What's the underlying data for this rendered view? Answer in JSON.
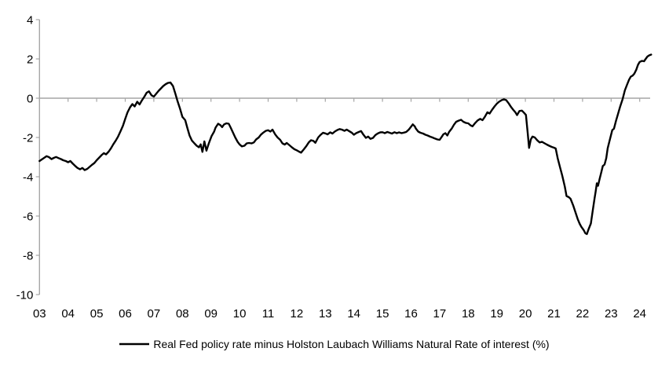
{
  "colors": {
    "background": "#ffffff",
    "axis": "#a6a6a6",
    "line": "#000000",
    "text": "#000000"
  },
  "legend": {
    "label": "Real Fed policy rate minus Holston Laubach Williams Natural Rate of interest (%)"
  },
  "chart_data": {
    "type": "line",
    "title": "",
    "xlabel": "",
    "ylabel": "",
    "grid": "zero-line-only",
    "legend_position": "bottom-center",
    "legend": [
      "Real Fed policy rate minus Holston Laubach Williams Natural Rate of interest (%)"
    ],
    "ylim": [
      -10,
      4
    ],
    "xlim": [
      2003,
      2024.45
    ],
    "y_ticks": [
      4,
      2,
      0,
      -2,
      -4,
      -6,
      -8,
      -10
    ],
    "x_ticks": [
      "03",
      "04",
      "05",
      "06",
      "07",
      "08",
      "09",
      "10",
      "11",
      "12",
      "13",
      "14",
      "15",
      "16",
      "17",
      "18",
      "19",
      "20",
      "21",
      "22",
      "23",
      "24"
    ],
    "series": [
      {
        "points": [
          [
            2003.0,
            -3.2
          ],
          [
            2003.08,
            -3.12
          ],
          [
            2003.17,
            -3.03
          ],
          [
            2003.25,
            -2.95
          ],
          [
            2003.33,
            -3.0
          ],
          [
            2003.42,
            -3.1
          ],
          [
            2003.5,
            -3.04
          ],
          [
            2003.58,
            -2.99
          ],
          [
            2003.67,
            -3.05
          ],
          [
            2003.75,
            -3.1
          ],
          [
            2003.83,
            -3.16
          ],
          [
            2003.92,
            -3.2
          ],
          [
            2004.0,
            -3.26
          ],
          [
            2004.08,
            -3.2
          ],
          [
            2004.17,
            -3.34
          ],
          [
            2004.25,
            -3.45
          ],
          [
            2004.33,
            -3.55
          ],
          [
            2004.42,
            -3.62
          ],
          [
            2004.5,
            -3.55
          ],
          [
            2004.58,
            -3.66
          ],
          [
            2004.67,
            -3.6
          ],
          [
            2004.75,
            -3.5
          ],
          [
            2004.83,
            -3.4
          ],
          [
            2004.92,
            -3.3
          ],
          [
            2005.0,
            -3.16
          ],
          [
            2005.08,
            -3.04
          ],
          [
            2005.17,
            -2.9
          ],
          [
            2005.25,
            -2.8
          ],
          [
            2005.33,
            -2.86
          ],
          [
            2005.42,
            -2.72
          ],
          [
            2005.5,
            -2.55
          ],
          [
            2005.58,
            -2.35
          ],
          [
            2005.67,
            -2.15
          ],
          [
            2005.75,
            -1.95
          ],
          [
            2005.83,
            -1.7
          ],
          [
            2005.92,
            -1.4
          ],
          [
            2006.0,
            -1.05
          ],
          [
            2006.08,
            -0.72
          ],
          [
            2006.17,
            -0.46
          ],
          [
            2006.25,
            -0.3
          ],
          [
            2006.33,
            -0.42
          ],
          [
            2006.42,
            -0.18
          ],
          [
            2006.5,
            -0.32
          ],
          [
            2006.58,
            -0.12
          ],
          [
            2006.67,
            0.08
          ],
          [
            2006.75,
            0.28
          ],
          [
            2006.83,
            0.35
          ],
          [
            2006.92,
            0.15
          ],
          [
            2007.0,
            0.08
          ],
          [
            2007.08,
            0.22
          ],
          [
            2007.17,
            0.38
          ],
          [
            2007.25,
            0.5
          ],
          [
            2007.33,
            0.62
          ],
          [
            2007.42,
            0.72
          ],
          [
            2007.5,
            0.78
          ],
          [
            2007.58,
            0.8
          ],
          [
            2007.67,
            0.62
          ],
          [
            2007.75,
            0.25
          ],
          [
            2007.83,
            -0.15
          ],
          [
            2007.92,
            -0.55
          ],
          [
            2008.0,
            -0.95
          ],
          [
            2008.04,
            -1.02
          ],
          [
            2008.1,
            -1.12
          ],
          [
            2008.17,
            -1.5
          ],
          [
            2008.25,
            -1.9
          ],
          [
            2008.33,
            -2.15
          ],
          [
            2008.42,
            -2.3
          ],
          [
            2008.5,
            -2.42
          ],
          [
            2008.58,
            -2.5
          ],
          [
            2008.64,
            -2.35
          ],
          [
            2008.7,
            -2.73
          ],
          [
            2008.77,
            -2.2
          ],
          [
            2008.84,
            -2.67
          ],
          [
            2008.93,
            -2.27
          ],
          [
            2009.02,
            -1.93
          ],
          [
            2009.11,
            -1.7
          ],
          [
            2009.16,
            -1.5
          ],
          [
            2009.25,
            -1.3
          ],
          [
            2009.33,
            -1.37
          ],
          [
            2009.39,
            -1.47
          ],
          [
            2009.46,
            -1.33
          ],
          [
            2009.54,
            -1.28
          ],
          [
            2009.62,
            -1.3
          ],
          [
            2009.69,
            -1.5
          ],
          [
            2009.77,
            -1.75
          ],
          [
            2009.85,
            -2.0
          ],
          [
            2009.93,
            -2.22
          ],
          [
            2010.0,
            -2.35
          ],
          [
            2010.08,
            -2.45
          ],
          [
            2010.17,
            -2.42
          ],
          [
            2010.25,
            -2.3
          ],
          [
            2010.33,
            -2.28
          ],
          [
            2010.42,
            -2.3
          ],
          [
            2010.5,
            -2.25
          ],
          [
            2010.58,
            -2.1
          ],
          [
            2010.67,
            -2.0
          ],
          [
            2010.75,
            -1.85
          ],
          [
            2010.83,
            -1.75
          ],
          [
            2010.92,
            -1.66
          ],
          [
            2011.0,
            -1.63
          ],
          [
            2011.08,
            -1.7
          ],
          [
            2011.15,
            -1.6
          ],
          [
            2011.25,
            -1.85
          ],
          [
            2011.33,
            -2.0
          ],
          [
            2011.42,
            -2.12
          ],
          [
            2011.5,
            -2.3
          ],
          [
            2011.58,
            -2.36
          ],
          [
            2011.65,
            -2.28
          ],
          [
            2011.75,
            -2.4
          ],
          [
            2011.83,
            -2.5
          ],
          [
            2011.92,
            -2.6
          ],
          [
            2012.0,
            -2.65
          ],
          [
            2012.08,
            -2.72
          ],
          [
            2012.15,
            -2.77
          ],
          [
            2012.25,
            -2.6
          ],
          [
            2012.33,
            -2.45
          ],
          [
            2012.42,
            -2.25
          ],
          [
            2012.5,
            -2.14
          ],
          [
            2012.58,
            -2.17
          ],
          [
            2012.65,
            -2.27
          ],
          [
            2012.75,
            -2.0
          ],
          [
            2012.83,
            -1.87
          ],
          [
            2012.92,
            -1.76
          ],
          [
            2013.0,
            -1.79
          ],
          [
            2013.08,
            -1.84
          ],
          [
            2013.17,
            -1.74
          ],
          [
            2013.25,
            -1.8
          ],
          [
            2013.33,
            -1.7
          ],
          [
            2013.42,
            -1.62
          ],
          [
            2013.5,
            -1.57
          ],
          [
            2013.58,
            -1.6
          ],
          [
            2013.67,
            -1.66
          ],
          [
            2013.75,
            -1.6
          ],
          [
            2013.83,
            -1.67
          ],
          [
            2013.92,
            -1.75
          ],
          [
            2014.0,
            -1.86
          ],
          [
            2014.08,
            -1.78
          ],
          [
            2014.17,
            -1.72
          ],
          [
            2014.25,
            -1.67
          ],
          [
            2014.33,
            -1.85
          ],
          [
            2014.42,
            -2.02
          ],
          [
            2014.5,
            -1.95
          ],
          [
            2014.58,
            -2.07
          ],
          [
            2014.67,
            -2.02
          ],
          [
            2014.75,
            -1.88
          ],
          [
            2014.83,
            -1.8
          ],
          [
            2014.92,
            -1.74
          ],
          [
            2015.0,
            -1.73
          ],
          [
            2015.08,
            -1.78
          ],
          [
            2015.17,
            -1.72
          ],
          [
            2015.25,
            -1.76
          ],
          [
            2015.33,
            -1.8
          ],
          [
            2015.42,
            -1.73
          ],
          [
            2015.5,
            -1.78
          ],
          [
            2015.58,
            -1.74
          ],
          [
            2015.67,
            -1.78
          ],
          [
            2015.75,
            -1.75
          ],
          [
            2015.83,
            -1.72
          ],
          [
            2015.92,
            -1.6
          ],
          [
            2016.0,
            -1.45
          ],
          [
            2016.06,
            -1.33
          ],
          [
            2016.13,
            -1.43
          ],
          [
            2016.17,
            -1.55
          ],
          [
            2016.25,
            -1.7
          ],
          [
            2016.33,
            -1.76
          ],
          [
            2016.42,
            -1.8
          ],
          [
            2016.5,
            -1.86
          ],
          [
            2016.58,
            -1.9
          ],
          [
            2016.67,
            -1.96
          ],
          [
            2016.75,
            -2.0
          ],
          [
            2016.83,
            -2.05
          ],
          [
            2016.92,
            -2.1
          ],
          [
            2017.0,
            -2.12
          ],
          [
            2017.08,
            -1.95
          ],
          [
            2017.13,
            -1.84
          ],
          [
            2017.2,
            -1.78
          ],
          [
            2017.27,
            -1.9
          ],
          [
            2017.33,
            -1.72
          ],
          [
            2017.42,
            -1.55
          ],
          [
            2017.5,
            -1.35
          ],
          [
            2017.58,
            -1.2
          ],
          [
            2017.67,
            -1.14
          ],
          [
            2017.75,
            -1.1
          ],
          [
            2017.83,
            -1.2
          ],
          [
            2017.92,
            -1.26
          ],
          [
            2018.0,
            -1.28
          ],
          [
            2018.08,
            -1.38
          ],
          [
            2018.15,
            -1.43
          ],
          [
            2018.25,
            -1.25
          ],
          [
            2018.33,
            -1.13
          ],
          [
            2018.42,
            -1.05
          ],
          [
            2018.5,
            -1.12
          ],
          [
            2018.58,
            -0.95
          ],
          [
            2018.67,
            -0.72
          ],
          [
            2018.75,
            -0.78
          ],
          [
            2018.83,
            -0.6
          ],
          [
            2018.92,
            -0.42
          ],
          [
            2019.0,
            -0.28
          ],
          [
            2019.08,
            -0.18
          ],
          [
            2019.17,
            -0.1
          ],
          [
            2019.25,
            -0.05
          ],
          [
            2019.33,
            -0.1
          ],
          [
            2019.42,
            -0.27
          ],
          [
            2019.5,
            -0.45
          ],
          [
            2019.58,
            -0.6
          ],
          [
            2019.65,
            -0.72
          ],
          [
            2019.71,
            -0.86
          ],
          [
            2019.79,
            -0.65
          ],
          [
            2019.88,
            -0.63
          ],
          [
            2019.96,
            -0.75
          ],
          [
            2020.02,
            -0.85
          ],
          [
            2020.08,
            -1.75
          ],
          [
            2020.13,
            -2.53
          ],
          [
            2020.19,
            -2.1
          ],
          [
            2020.25,
            -1.95
          ],
          [
            2020.33,
            -2.0
          ],
          [
            2020.42,
            -2.15
          ],
          [
            2020.5,
            -2.25
          ],
          [
            2020.58,
            -2.22
          ],
          [
            2020.65,
            -2.28
          ],
          [
            2020.75,
            -2.36
          ],
          [
            2020.83,
            -2.42
          ],
          [
            2020.92,
            -2.48
          ],
          [
            2021.0,
            -2.52
          ],
          [
            2021.06,
            -2.56
          ],
          [
            2021.13,
            -3.05
          ],
          [
            2021.21,
            -3.5
          ],
          [
            2021.29,
            -3.95
          ],
          [
            2021.38,
            -4.5
          ],
          [
            2021.44,
            -4.98
          ],
          [
            2021.52,
            -5.04
          ],
          [
            2021.58,
            -5.12
          ],
          [
            2021.67,
            -5.45
          ],
          [
            2021.75,
            -5.8
          ],
          [
            2021.83,
            -6.15
          ],
          [
            2021.9,
            -6.4
          ],
          [
            2021.96,
            -6.55
          ],
          [
            2022.04,
            -6.72
          ],
          [
            2022.1,
            -6.88
          ],
          [
            2022.15,
            -6.92
          ],
          [
            2022.21,
            -6.68
          ],
          [
            2022.29,
            -6.38
          ],
          [
            2022.35,
            -5.8
          ],
          [
            2022.42,
            -5.1
          ],
          [
            2022.46,
            -4.75
          ],
          [
            2022.5,
            -4.33
          ],
          [
            2022.54,
            -4.46
          ],
          [
            2022.6,
            -4.1
          ],
          [
            2022.65,
            -3.8
          ],
          [
            2022.71,
            -3.45
          ],
          [
            2022.77,
            -3.38
          ],
          [
            2022.83,
            -3.05
          ],
          [
            2022.88,
            -2.55
          ],
          [
            2022.94,
            -2.2
          ],
          [
            2023.0,
            -1.85
          ],
          [
            2023.04,
            -1.62
          ],
          [
            2023.1,
            -1.55
          ],
          [
            2023.17,
            -1.15
          ],
          [
            2023.23,
            -0.85
          ],
          [
            2023.31,
            -0.45
          ],
          [
            2023.4,
            -0.05
          ],
          [
            2023.48,
            0.4
          ],
          [
            2023.56,
            0.7
          ],
          [
            2023.63,
            0.95
          ],
          [
            2023.69,
            1.1
          ],
          [
            2023.75,
            1.15
          ],
          [
            2023.81,
            1.25
          ],
          [
            2023.88,
            1.45
          ],
          [
            2023.94,
            1.7
          ],
          [
            2024.0,
            1.85
          ],
          [
            2024.08,
            1.9
          ],
          [
            2024.15,
            1.88
          ],
          [
            2024.21,
            2.0
          ],
          [
            2024.27,
            2.12
          ],
          [
            2024.33,
            2.18
          ],
          [
            2024.4,
            2.22
          ]
        ]
      }
    ]
  }
}
